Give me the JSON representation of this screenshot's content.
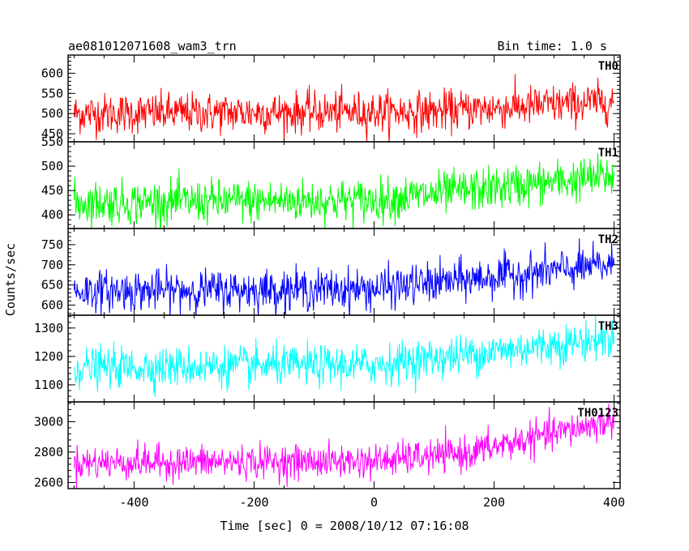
{
  "header": {
    "title": "ae081012071608_wam3_trn",
    "bin_time": "Bin time: 1.0 s"
  },
  "axes": {
    "xlabel": "Time [sec] 0 = 2008/10/12 07:16:08",
    "ylabel": "Counts/sec"
  },
  "chart_data": {
    "type": "line",
    "title": "ae081012071608_wam3_trn",
    "xlabel": "Time [sec] 0 = 2008/10/12 07:16:08",
    "ylabel": "Counts/sec",
    "xlim": [
      -510,
      410
    ],
    "x_ticks": [
      -400,
      -200,
      0,
      200,
      400
    ],
    "x_step": 1.0,
    "x_start": -500,
    "x_end": 400,
    "grid": false,
    "panels": [
      {
        "name": "TH0",
        "color": "#ff0000",
        "ylim": [
          430,
          645
        ],
        "yticks": [
          450,
          500,
          550,
          600
        ],
        "trend": [
          {
            "x": -500,
            "y": 500
          },
          {
            "x": 100,
            "y": 505
          },
          {
            "x": 400,
            "y": 530
          }
        ],
        "noise_sd": 25
      },
      {
        "name": "TH1",
        "color": "#00ff00",
        "ylim": [
          372,
          550
        ],
        "yticks": [
          400,
          450,
          500,
          550
        ],
        "trend": [
          {
            "x": -500,
            "y": 425
          },
          {
            "x": 0,
            "y": 430
          },
          {
            "x": 400,
            "y": 480
          }
        ],
        "noise_sd": 22
      },
      {
        "name": "TH2",
        "color": "#0000ff",
        "ylim": [
          575,
          790
        ],
        "yticks": [
          600,
          650,
          700,
          750
        ],
        "trend": [
          {
            "x": -500,
            "y": 635
          },
          {
            "x": 0,
            "y": 640
          },
          {
            "x": 400,
            "y": 700
          }
        ],
        "noise_sd": 25
      },
      {
        "name": "TH3",
        "color": "#00ffff",
        "ylim": [
          1040,
          1345
        ],
        "yticks": [
          1100,
          1200,
          1300
        ],
        "trend": [
          {
            "x": -500,
            "y": 1160
          },
          {
            "x": 0,
            "y": 1170
          },
          {
            "x": 400,
            "y": 1265
          }
        ],
        "noise_sd": 35
      },
      {
        "name": "TH0123",
        "color": "#ff00ff",
        "ylim": [
          2560,
          3130
        ],
        "yticks": [
          2600,
          2800,
          3000
        ],
        "trend": [
          {
            "x": -500,
            "y": 2730
          },
          {
            "x": 0,
            "y": 2740
          },
          {
            "x": 150,
            "y": 2790
          },
          {
            "x": 400,
            "y": 3010
          }
        ],
        "noise_sd": 55
      }
    ]
  }
}
